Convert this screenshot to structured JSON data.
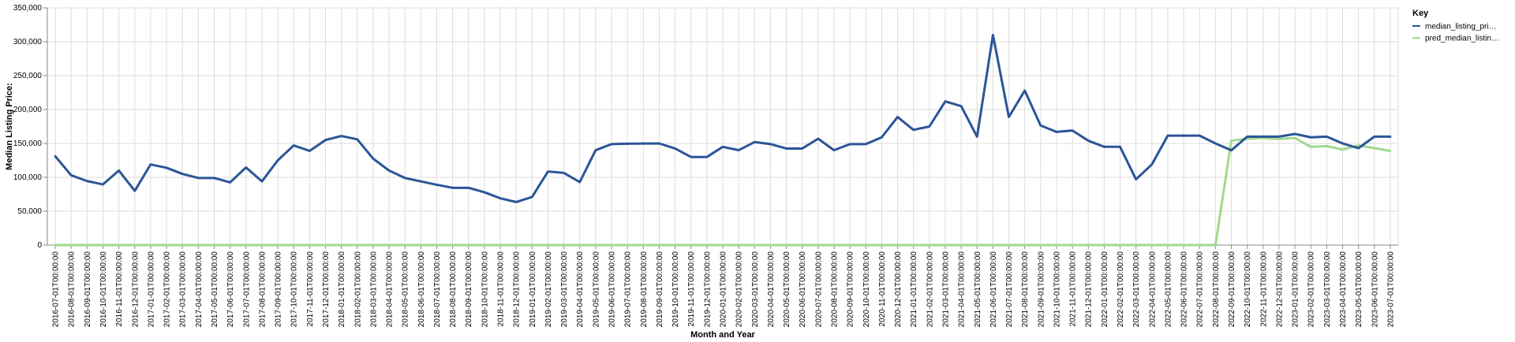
{
  "chart_data": {
    "type": "line",
    "xlabel": "Month and Year",
    "ylabel": "Median Listing Price:",
    "ylim": [
      0,
      350000
    ],
    "y_ticks": [
      "0",
      "50,000",
      "100,000",
      "150,000",
      "200,000",
      "250,000",
      "300,000",
      "350,000"
    ],
    "grid": true,
    "legend": {
      "title": "Key",
      "placement": "top-right",
      "entries": [
        "median_listing_pri…",
        "pred_median_listin…"
      ]
    },
    "x": [
      "2016-07-01T00:00:00",
      "2016-08-01T00:00:00",
      "2016-09-01T00:00:00",
      "2016-10-01T00:00:00",
      "2016-11-01T00:00:00",
      "2016-12-01T00:00:00",
      "2017-01-01T00:00:00",
      "2017-02-01T00:00:00",
      "2017-03-01T00:00:00",
      "2017-04-01T00:00:00",
      "2017-05-01T00:00:00",
      "2017-06-01T00:00:00",
      "2017-07-01T00:00:00",
      "2017-08-01T00:00:00",
      "2017-09-01T00:00:00",
      "2017-10-01T00:00:00",
      "2017-11-01T00:00:00",
      "2017-12-01T00:00:00",
      "2018-01-01T00:00:00",
      "2018-02-01T00:00:00",
      "2018-03-01T00:00:00",
      "2018-04-01T00:00:00",
      "2018-05-01T00:00:00",
      "2018-06-01T00:00:00",
      "2018-07-01T00:00:00",
      "2018-08-01T00:00:00",
      "2018-09-01T00:00:00",
      "2018-10-01T00:00:00",
      "2018-11-01T00:00:00",
      "2018-12-01T00:00:00",
      "2019-01-01T00:00:00",
      "2019-02-01T00:00:00",
      "2019-03-01T00:00:00",
      "2019-04-01T00:00:00",
      "2019-05-01T00:00:00",
      "2019-06-01T00:00:00",
      "2019-07-01T00:00:00",
      "2019-08-01T00:00:00",
      "2019-09-01T00:00:00",
      "2019-10-01T00:00:00",
      "2019-11-01T00:00:00",
      "2019-12-01T00:00:00",
      "2020-01-01T00:00:00",
      "2020-02-01T00:00:00",
      "2020-03-01T00:00:00",
      "2020-04-01T00:00:00",
      "2020-05-01T00:00:00",
      "2020-06-01T00:00:00",
      "2020-07-01T00:00:00",
      "2020-08-01T00:00:00",
      "2020-09-01T00:00:00",
      "2020-10-01T00:00:00",
      "2020-11-01T00:00:00",
      "2020-12-01T00:00:00",
      "2021-01-01T00:00:00",
      "2021-02-01T00:00:00",
      "2021-03-01T00:00:00",
      "2021-04-01T00:00:00",
      "2021-05-01T00:00:00",
      "2021-06-01T00:00:00",
      "2021-07-01T00:00:00",
      "2021-08-01T00:00:00",
      "2021-09-01T00:00:00",
      "2021-10-01T00:00:00",
      "2021-11-01T00:00:00",
      "2021-12-01T00:00:00",
      "2022-01-01T00:00:00",
      "2022-02-01T00:00:00",
      "2022-03-01T00:00:00",
      "2022-04-01T00:00:00",
      "2022-05-01T00:00:00",
      "2022-06-01T00:00:00",
      "2022-07-01T00:00:00",
      "2022-08-01T00:00:00",
      "2022-09-01T00:00:00",
      "2022-10-01T00:00:00",
      "2022-11-01T00:00:00",
      "2022-12-01T00:00:00",
      "2023-01-01T00:00:00",
      "2023-02-01T00:00:00",
      "2023-03-01T00:00:00",
      "2023-04-01T00:00:00",
      "2023-05-01T00:00:00",
      "2023-06-01T00:00:00",
      "2023-07-01T00:00:00"
    ],
    "series": [
      {
        "name": "median_listing_pri…",
        "color": "#2b5597",
        "values": [
          131000,
          103000,
          94500,
          89500,
          110000,
          80000,
          119000,
          114000,
          105000,
          99000,
          99000,
          92500,
          114500,
          94000,
          125000,
          147000,
          139000,
          155000,
          161000,
          156000,
          127500,
          110000,
          99000,
          94000,
          89000,
          84500,
          84500,
          78000,
          69000,
          63500,
          71000,
          108500,
          106500,
          93000,
          140000,
          149000,
          149500,
          149900,
          150000,
          142500,
          130000,
          130000,
          145000,
          140000,
          152000,
          149000,
          142500,
          142500,
          157000,
          140000,
          149000,
          149000,
          159000,
          189000,
          170000,
          175000,
          212000,
          205000,
          160000,
          310000,
          189000,
          228000,
          176500,
          167000,
          169000,
          154000,
          145000,
          145000,
          97000,
          119000,
          161500,
          161500,
          161500,
          150000,
          139900,
          160000,
          160000,
          160000,
          164000,
          159000,
          160000,
          150000,
          143000,
          160000,
          160000
        ]
      },
      {
        "name": "pred_median_listin…",
        "color": "#a0d98f",
        "values": [
          0,
          0,
          0,
          0,
          0,
          0,
          0,
          0,
          0,
          0,
          0,
          0,
          0,
          0,
          0,
          0,
          0,
          0,
          0,
          0,
          0,
          0,
          0,
          0,
          0,
          0,
          0,
          0,
          0,
          0,
          0,
          0,
          0,
          0,
          0,
          0,
          0,
          0,
          0,
          0,
          0,
          0,
          0,
          0,
          0,
          0,
          0,
          0,
          0,
          0,
          0,
          0,
          0,
          0,
          0,
          0,
          0,
          0,
          0,
          0,
          0,
          0,
          0,
          0,
          0,
          0,
          0,
          0,
          0,
          0,
          0,
          0,
          0,
          0,
          154000,
          157000,
          158000,
          156500,
          158000,
          145000,
          146000,
          141000,
          147000,
          143000,
          139000
        ]
      }
    ]
  }
}
